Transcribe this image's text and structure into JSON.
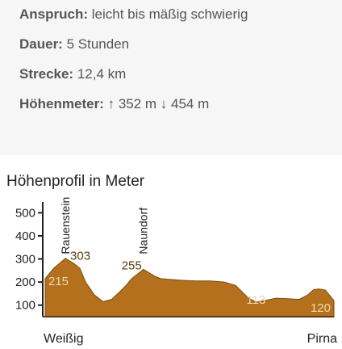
{
  "info": {
    "rows": [
      {
        "key": "Anspruch:",
        "value": "leicht bis mäßig schwierig"
      },
      {
        "key": "Dauer:",
        "value": "5 Stunden"
      },
      {
        "key": "Strecke:",
        "value": "12,4 km"
      },
      {
        "key": "Höhenmeter:",
        "value": "↑ 352 m ↓ 454 m"
      }
    ]
  },
  "chart_data": {
    "type": "area",
    "title": "Höhenprofil in Meter",
    "yticks": [
      "500",
      "400",
      "300",
      "200",
      "100"
    ],
    "ytick_values": [
      500,
      400,
      300,
      200,
      100
    ],
    "ylim": [
      50,
      540
    ],
    "xlim": [
      0,
      100
    ],
    "start_label": "Weißig",
    "end_label": "Pirna",
    "fill_color": "#b5701e",
    "label_color": "#f0d9a8",
    "series": [
      {
        "x": [
          0,
          3,
          7,
          10,
          12,
          14,
          17,
          20,
          23,
          26,
          28,
          30,
          32,
          34,
          36,
          38,
          40,
          43,
          47,
          52,
          57,
          62,
          66,
          70,
          73,
          76,
          80,
          84,
          88,
          91,
          93,
          95,
          97,
          99,
          100
        ],
        "y": [
          215,
          260,
          303,
          280,
          260,
          200,
          145,
          115,
          125,
          160,
          185,
          215,
          235,
          255,
          240,
          225,
          215,
          212,
          208,
          205,
          205,
          200,
          185,
          135,
          113,
          120,
          130,
          128,
          125,
          145,
          168,
          170,
          165,
          135,
          120
        ]
      }
    ],
    "points": [
      {
        "label": "215",
        "x": 0,
        "y": 215
      },
      {
        "label": "303",
        "x": 7,
        "y": 303
      },
      {
        "label": "255",
        "x": 34,
        "y": 255
      },
      {
        "label": "113",
        "x": 73,
        "y": 113
      },
      {
        "label": "120",
        "x": 100,
        "y": 120
      }
    ],
    "places": [
      {
        "label": "Rauenstein",
        "x": 7
      },
      {
        "label": "Naundorf",
        "x": 34
      }
    ]
  }
}
